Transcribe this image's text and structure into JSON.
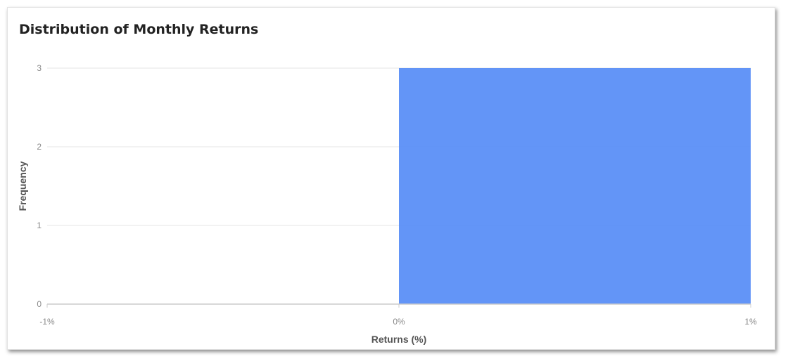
{
  "chart_data": {
    "type": "bar",
    "title": "Distribution of Monthly Returns",
    "xlabel": "Returns (%)",
    "ylabel": "Frequency",
    "x_ticks": [
      {
        "value": -1,
        "label": "-1%"
      },
      {
        "value": 0,
        "label": "0%"
      },
      {
        "value": 1,
        "label": "1%"
      }
    ],
    "y_ticks": [
      0,
      1,
      2,
      3
    ],
    "xlim": [
      -1,
      1
    ],
    "ylim": [
      0,
      3
    ],
    "bins": [
      {
        "x0": -1,
        "x1": 0,
        "count": 0
      },
      {
        "x0": 0,
        "x1": 1,
        "count": 3
      }
    ],
    "grid": true,
    "legend": "none",
    "colors": {
      "bar": "#5b8ff7",
      "grid": "#e6e6e6",
      "axis": "#cccccc"
    }
  }
}
